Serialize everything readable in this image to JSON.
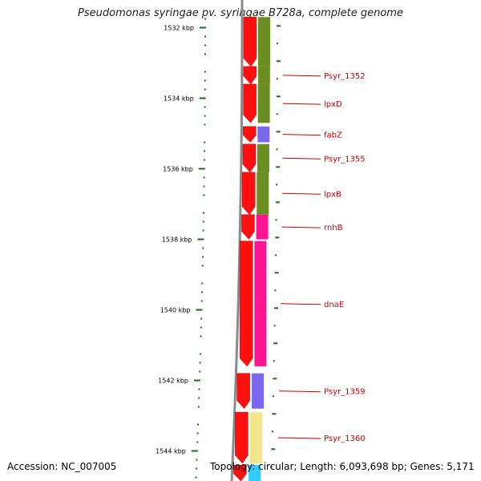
{
  "title": "Pseudomonas syringae pv. syringae B728a, complete genome",
  "footer": {
    "accession": "Accession: NC_007005",
    "topology": "Topology: circular; Length: 6,093,698 bp; Genes: 5,171"
  },
  "colors": {
    "ruler": "#1a6e1a",
    "gene_label": "#cc0000",
    "forward_feature": "#ff1010",
    "backbone": "#8a8a8a",
    "cog_olive": "#6b8e23",
    "cog_purple": "#7b68ee",
    "cog_pink": "#ff1493",
    "cog_yellow": "#f0e68c",
    "cog_cyan": "#33ccff"
  },
  "ruler_ticks": [
    {
      "kbp": 1532,
      "label": "1532 kbp"
    },
    {
      "kbp": 1534,
      "label": "1534 kbp"
    },
    {
      "kbp": 1536,
      "label": "1536 kbp"
    },
    {
      "kbp": 1538,
      "label": "1538 kbp"
    },
    {
      "kbp": 1540,
      "label": "1540 kbp"
    },
    {
      "kbp": 1542,
      "label": "1542 kbp"
    },
    {
      "kbp": 1544,
      "label": "1544 kbp"
    }
  ],
  "genes": [
    {
      "name": "",
      "start_kbp": 1531.7,
      "end_kbp": 1533.1,
      "cog_color": "cog_olive"
    },
    {
      "name": "Psyr_1352",
      "start_kbp": 1533.1,
      "end_kbp": 1533.6,
      "cog_color": "cog_olive"
    },
    {
      "name": "lpxD",
      "start_kbp": 1533.6,
      "end_kbp": 1534.7,
      "cog_color": "cog_olive"
    },
    {
      "name": "fabZ",
      "start_kbp": 1534.8,
      "end_kbp": 1535.25,
      "cog_color": "cog_purple"
    },
    {
      "name": "Psyr_1355",
      "start_kbp": 1535.3,
      "end_kbp": 1536.1,
      "cog_color": "cog_olive"
    },
    {
      "name": "lpxB",
      "start_kbp": 1536.1,
      "end_kbp": 1537.3,
      "cog_color": "cog_olive"
    },
    {
      "name": "rnhB",
      "start_kbp": 1537.3,
      "end_kbp": 1538.0,
      "cog_color": "cog_pink"
    },
    {
      "name": "dnaE",
      "start_kbp": 1538.05,
      "end_kbp": 1541.6,
      "cog_color": "cog_pink"
    },
    {
      "name": "Psyr_1359",
      "start_kbp": 1541.8,
      "end_kbp": 1542.8,
      "cog_color": "cog_purple"
    },
    {
      "name": "Psyr_1360",
      "start_kbp": 1542.9,
      "end_kbp": 1544.35,
      "cog_color": "cog_yellow"
    },
    {
      "name": "",
      "start_kbp": 1544.4,
      "end_kbp": 1545.0,
      "cog_color": "cog_cyan"
    }
  ]
}
